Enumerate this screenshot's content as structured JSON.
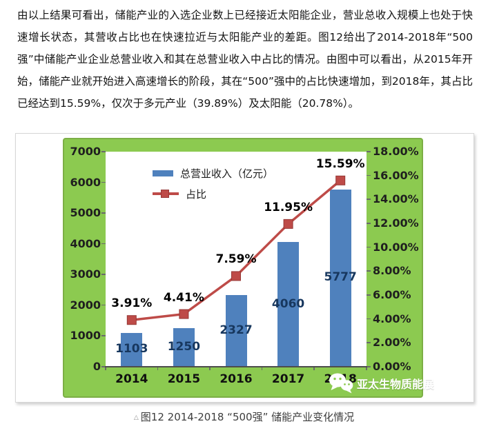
{
  "article": {
    "paragraph": "由以上结果可看出，储能产业的入选企业数上已经接近太阳能企业，营业总收入规模上也处于快速增长状态，其营收占比也在快速拉近与太阳能产业的差距。图12给出了2014-2018年“500强”中储能产业企业总营业收入和其在总营业收入中占比的情况。由图中可以看出，从2015年开始，储能产业就开始进入高速增长的阶段，其在“500”强中的占比快速增加，到2018年，其占比已经达到15.59%，仅次于多元产业（39.89%）及太阳能（20.78%）。"
  },
  "chart_data": {
    "type": "bar+line",
    "categories": [
      "2014",
      "2015",
      "2016",
      "2017",
      "2018"
    ],
    "series": [
      {
        "name": "总营业收入（亿元）",
        "type": "bar",
        "axis": "left",
        "values": [
          1103,
          1250,
          2327,
          4060,
          5777
        ]
      },
      {
        "name": "占比",
        "type": "line",
        "axis": "right",
        "values": [
          3.91,
          4.41,
          7.59,
          11.95,
          15.59
        ],
        "labels": [
          "3.91%",
          "4.41%",
          "7.59%",
          "11.95%",
          "15.59%"
        ]
      }
    ],
    "left_axis": {
      "min": 0,
      "max": 7000,
      "step": 1000,
      "tick_labels": [
        "0",
        "1000",
        "2000",
        "3000",
        "4000",
        "5000",
        "6000",
        "7000"
      ]
    },
    "right_axis": {
      "min": 0,
      "max": 18,
      "step": 2,
      "tick_labels": [
        "0.00%",
        "2.00%",
        "4.00%",
        "6.00%",
        "8.00%",
        "10.00%",
        "12.00%",
        "14.00%",
        "16.00%",
        "18.00%"
      ]
    },
    "grid": false,
    "legend_position": "inside-top-left",
    "colors": {
      "bar": "#4F81BD",
      "bar_label": "#17375E",
      "line": "#BE4B48",
      "line_marker_border": "#953735",
      "percent_label": "#000000",
      "chart_bg": "#8CCA50",
      "chart_border": "#7CAE45"
    }
  },
  "watermark": {
    "text": "亚太生物质能展",
    "icon": "wechat-icon"
  },
  "caption": {
    "bullet": "△",
    "text": "图12 2014-2018 “500强” 储能产业变化情况"
  }
}
